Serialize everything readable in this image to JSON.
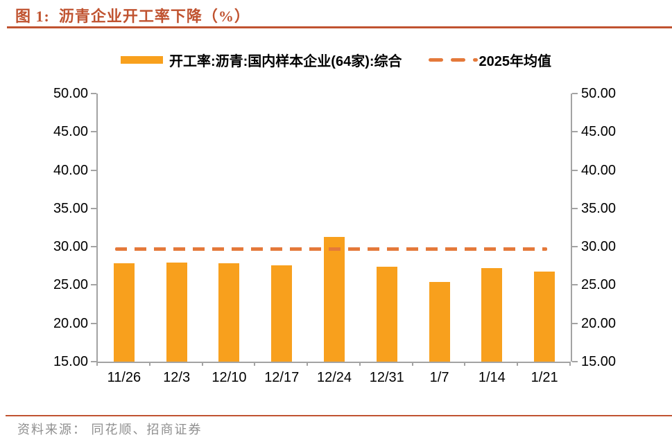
{
  "figure": {
    "title": "图 1:  沥青企业开工率下降（%）"
  },
  "legend": {
    "series1_label": "开工率:沥青:国内样本企业(64家):综合",
    "series2_label": "2025年均值"
  },
  "footer": {
    "source": "资料来源： 同花顺、招商证券"
  },
  "colors": {
    "bar": "#F8A01D",
    "dash_line": "#E4793A",
    "accent_rule": "#C05330",
    "axis": "#A3A3A3",
    "source_text": "#8F8F8F",
    "label_text": "#000000"
  },
  "chart_data": {
    "type": "bar",
    "title": "沥青企业开工率下降（%）",
    "categories": [
      "11/26",
      "12/3",
      "12/10",
      "12/17",
      "12/24",
      "12/31",
      "1/7",
      "1/14",
      "1/21"
    ],
    "series": [
      {
        "name": "开工率:沥青:国内样本企业(64家):综合",
        "type": "bar",
        "values": [
          27.8,
          27.9,
          27.8,
          27.6,
          31.3,
          27.4,
          25.4,
          27.2,
          26.8
        ]
      },
      {
        "name": "2025年均值",
        "type": "dashed-line",
        "average_value": 29.7
      }
    ],
    "ylim": [
      15,
      50
    ],
    "yticks": [
      15,
      20,
      25,
      30,
      35,
      40,
      45,
      50
    ],
    "ytick_labels": [
      "15.00",
      "20.00",
      "25.00",
      "30.00",
      "35.00",
      "40.00",
      "45.00",
      "50.00"
    ],
    "dual_axis": true,
    "grid": false,
    "legend_position": "top"
  }
}
